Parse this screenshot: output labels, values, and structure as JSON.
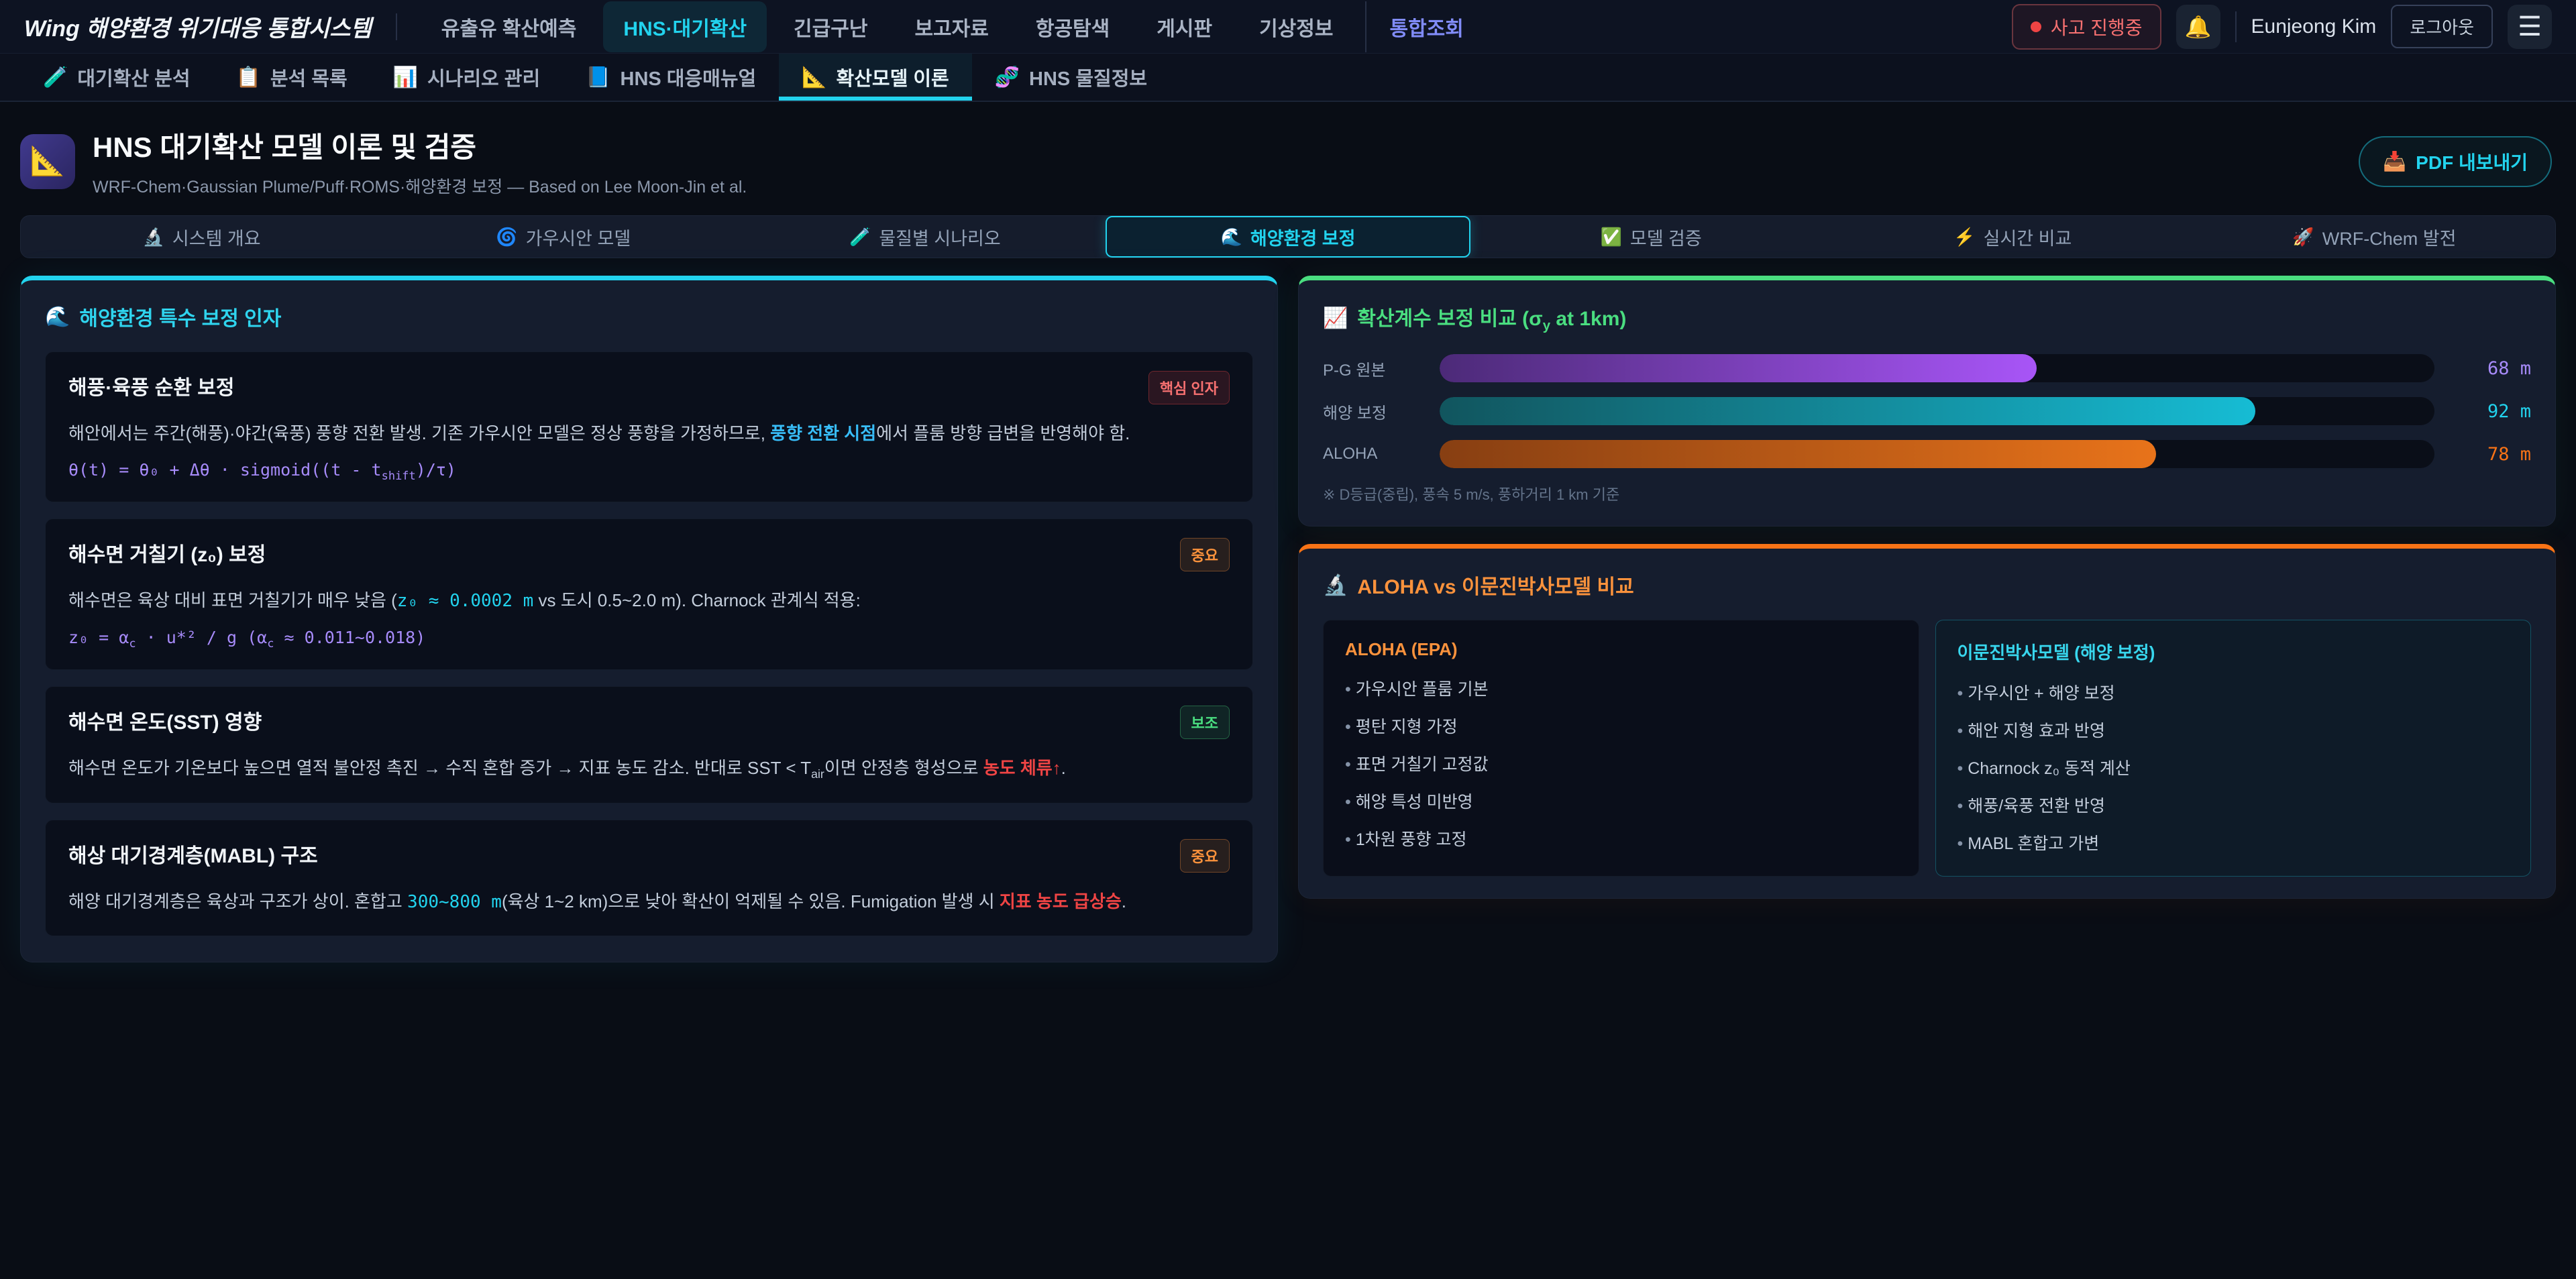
{
  "topbar": {
    "logo": "Wing 해양환경 위기대응 통합시스템",
    "nav": [
      {
        "label": "유출유 확산예측"
      },
      {
        "label": "HNS·대기확산"
      },
      {
        "label": "긴급구난"
      },
      {
        "label": "보고자료"
      },
      {
        "label": "항공탐색"
      },
      {
        "label": "게시판"
      },
      {
        "label": "기상정보"
      },
      {
        "label": "통합조회"
      }
    ],
    "incident_badge": "사고 진행중",
    "bell_icon": "🔔",
    "user_name": "Eunjeong Kim",
    "logout_label": "로그아웃",
    "menu_icon": "☰"
  },
  "subnav": {
    "items": [
      {
        "icon": "🧪",
        "label": "대기확산 분석"
      },
      {
        "icon": "📋",
        "label": "분석 목록"
      },
      {
        "icon": "📊",
        "label": "시나리오 관리"
      },
      {
        "icon": "📘",
        "label": "HNS 대응매뉴얼"
      },
      {
        "icon": "📐",
        "label": "확산모델 이론"
      },
      {
        "icon": "🧬",
        "label": "HNS 물질정보"
      }
    ]
  },
  "header": {
    "icon": "📐",
    "title": "HNS 대기확산 모델 이론 및 검증",
    "subtitle": "WRF-Chem·Gaussian Plume/Puff·ROMS·해양환경 보정 — Based on Lee Moon-Jin et al.",
    "pdf_icon": "📥",
    "pdf_label": "PDF 내보내기"
  },
  "section_tabs": [
    {
      "icon": "🔬",
      "label": "시스템 개요"
    },
    {
      "icon": "🌀",
      "label": "가우시안 모델"
    },
    {
      "icon": "🧪",
      "label": "물질별 시나리오"
    },
    {
      "icon": "🌊",
      "label": "해양환경 보정"
    },
    {
      "icon": "✅",
      "label": "모델 검증"
    },
    {
      "icon": "⚡",
      "label": "실시간 비교"
    },
    {
      "icon": "🚀",
      "label": "WRF-Chem 발전"
    }
  ],
  "left_panel": {
    "icon": "🌊",
    "title": "해양환경 특수 보정 인자",
    "cards": [
      {
        "title": "해풍·육풍 순환 보정",
        "badge": {
          "label": "핵심 인자",
          "type": "red"
        },
        "body": [
          {
            "text": "해안에서는 주간(해풍)·야간(육풍) 풍향 전환 발생. 기존 가우시안 모델은 정상 풍향을 가정하므로, "
          },
          {
            "text": "풍향 전환 시점",
            "style": "cyan-bold"
          },
          {
            "text": "에서 플룸 방향 급변을 반영해야 함."
          }
        ],
        "formula": [
          {
            "text": "θ(t) = θ₀ + Δθ · sigmoid((t - t"
          },
          {
            "text": "shift",
            "style": "sub"
          },
          {
            "text": ")/τ)"
          }
        ]
      },
      {
        "title": "해수면 거칠기 (z₀) 보정",
        "badge": {
          "label": "중요",
          "type": "orange"
        },
        "body": [
          {
            "text": "해수면은 육상 대비 표면 거칠기가 매우 낮음 ("
          },
          {
            "text": "z₀ ≈ 0.0002 m",
            "style": "mono-cyan"
          },
          {
            "text": " vs 도시 0.5~2.0 m). Charnock 관계식 적용:"
          }
        ],
        "formula": [
          {
            "text": "z₀ = α"
          },
          {
            "text": "c",
            "style": "sub"
          },
          {
            "text": " · u*² / g (α"
          },
          {
            "text": "c",
            "style": "sub"
          },
          {
            "text": " ≈ 0.011~0.018)"
          }
        ]
      },
      {
        "title": "해수면 온도(SST) 영향",
        "badge": {
          "label": "보조",
          "type": "green"
        },
        "body": [
          {
            "text": "해수면 온도가 기온보다 높으면 열적 불안정 촉진 → 수직 혼합 증가 → 지표 농도 감소. 반대로 SST < T"
          },
          {
            "text": "air",
            "style": "sub"
          },
          {
            "text": "이면 안정층 형성으로 "
          },
          {
            "text": "농도 체류↑",
            "style": "red-bold"
          },
          {
            "text": "."
          }
        ]
      },
      {
        "title": "해상 대기경계층(MABL) 구조",
        "badge": {
          "label": "중요",
          "type": "orange"
        },
        "body": [
          {
            "text": "해양 대기경계층은 육상과 구조가 상이. 혼합고 "
          },
          {
            "text": "300~800 m",
            "style": "mono-cyan"
          },
          {
            "text": "(육상 1~2 km)으로 낮아 확산이 억제될 수 있음. Fumigation 발생 시 "
          },
          {
            "text": "지표 농도 급상승",
            "style": "red-bold"
          },
          {
            "text": "."
          }
        ]
      }
    ]
  },
  "dispersion_panel": {
    "icon": "📈",
    "title": [
      {
        "text": "확산계수 보정 비교 (σ"
      },
      {
        "text": "y",
        "style": "sub"
      },
      {
        "text": " at 1km)"
      }
    ],
    "footnote": "※ D등급(중립), 풍속 5 m/s, 풍하거리 1 km 기준",
    "chart_data": {
      "type": "bar",
      "categories": [
        "P-G 원본",
        "해양 보정",
        "ALOHA"
      ],
      "values": [
        68,
        92,
        78
      ],
      "unit": "m",
      "title": "확산계수 보정 비교 (σy at 1km)"
    },
    "bars": [
      {
        "label": "P-G 원본",
        "value": "68 m",
        "width": "60%",
        "color": "#a78bfa"
      },
      {
        "label": "해양 보정",
        "value": "92 m",
        "width": "82%",
        "color": "#22d3ee"
      },
      {
        "label": "ALOHA",
        "value": "78 m",
        "width": "72%",
        "color": "#f97316"
      }
    ]
  },
  "comparison_panel": {
    "icon": "🔬",
    "title": "ALOHA vs 이문진박사모델 비교",
    "columns": [
      {
        "heading": "ALOHA (EPA)",
        "items": [
          "가우시안 플룸 기본",
          "평탄 지형 가정",
          "표면 거칠기 고정값",
          "해양 특성 미반영",
          "1차원 풍향 고정"
        ]
      },
      {
        "heading": "이문진박사모델 (해양 보정)",
        "items": [
          "가우시안 + 해양 보정",
          "해안 지형 효과 반영",
          "Charnock z₀ 동적 계산",
          "해풍/육풍 전환 반영",
          "MABL 혼합고 가변"
        ]
      }
    ]
  },
  "colors": {
    "accent_cyan": "#22d3ee",
    "accent_green": "#4ade80",
    "accent_orange": "#f97316",
    "accent_purple": "#a78bfa",
    "alert_red": "#f87171",
    "link_purple": "#818cf8",
    "page_bg": "#090d15",
    "panel_bg": "#151d2e",
    "card_bg": "#0a0f1b"
  }
}
